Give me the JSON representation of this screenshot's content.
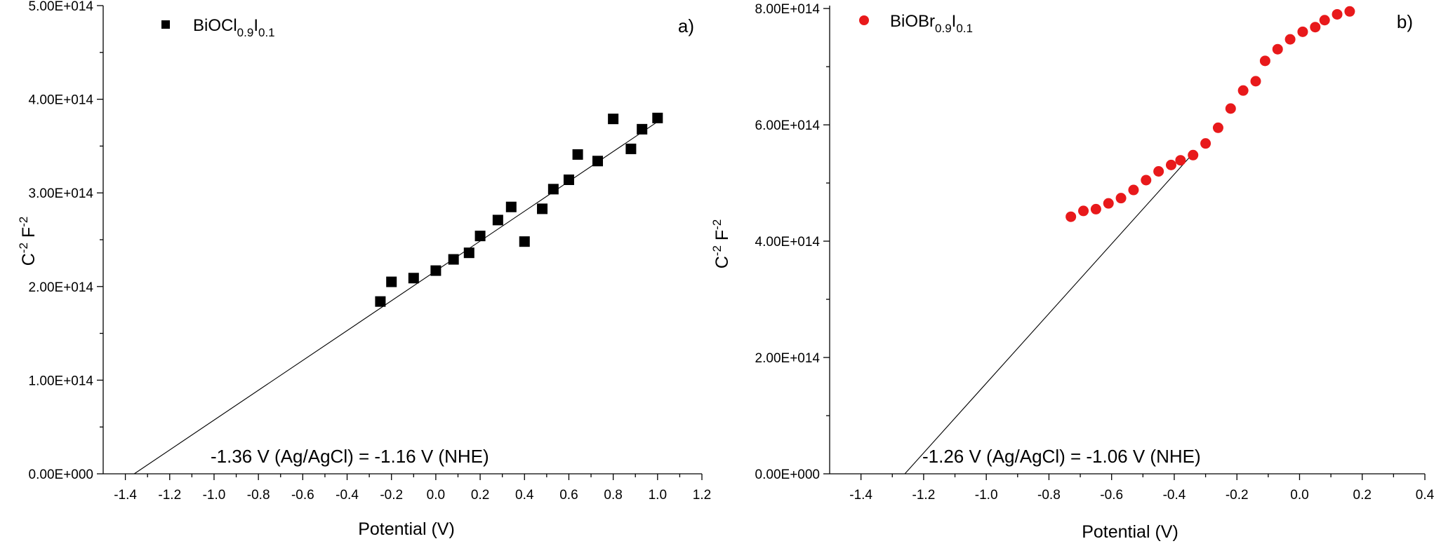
{
  "chart_data": [
    {
      "type": "scatter",
      "panel_label": "a)",
      "legend": {
        "base": "BiOCl",
        "sub1": "0.9",
        "mid": "I",
        "sub2": "0.1",
        "marker": "square",
        "placement": "top-left"
      },
      "xlabel": "Potential (V)",
      "ylabel": {
        "c": "C",
        "csup": "-2",
        "f": " F",
        "fsup": "-2"
      },
      "xlim": [
        -1.5,
        1.2
      ],
      "ylim": [
        0,
        500000000000000.0
      ],
      "xticks": [
        -1.4,
        -1.2,
        -1.0,
        -0.8,
        -0.6,
        -0.4,
        -0.2,
        0.0,
        0.2,
        0.4,
        0.6,
        0.8,
        1.0,
        1.2
      ],
      "xtick_labels": [
        "-1.4",
        "-1.2",
        "-1.0",
        "-0.8",
        "-0.6",
        "-0.4",
        "-0.2",
        "0.0",
        "0.2",
        "0.4",
        "0.6",
        "0.8",
        "1.0",
        "1.2"
      ],
      "yticks": [
        0,
        100000000000000.0,
        200000000000000.0,
        300000000000000.0,
        400000000000000.0,
        500000000000000.0
      ],
      "ytick_labels": [
        "0.00E+000",
        "1.00E+014",
        "2.00E+014",
        "3.00E+014",
        "4.00E+014",
        "5.00E+014"
      ],
      "series": [
        {
          "name": "BiOCl0.9I0.1",
          "color": "#000000",
          "x": [
            -0.25,
            -0.2,
            -0.1,
            0.0,
            0.08,
            0.15,
            0.2,
            0.28,
            0.34,
            0.4,
            0.48,
            0.53,
            0.6,
            0.64,
            0.73,
            0.8,
            0.88,
            0.93,
            1.0
          ],
          "y": [
            184000000000000.0,
            205000000000000.0,
            209000000000000.0,
            217000000000000.0,
            229000000000000.0,
            236000000000000.0,
            254000000000000.0,
            271000000000000.0,
            285000000000000.0,
            248000000000000.0,
            283000000000000.0,
            304000000000000.0,
            314000000000000.0,
            341000000000000.0,
            334000000000000.0,
            379000000000000.0,
            347000000000000.0,
            368000000000000.0,
            380000000000000.0
          ]
        }
      ],
      "fit_line": {
        "x": [
          -1.36,
          1.0
        ],
        "y": [
          0,
          376000000000000.0
        ]
      },
      "annotation": "-1.36 V (Ag/AgCl) = -1.16 V (NHE)",
      "grid": false
    },
    {
      "type": "scatter",
      "panel_label": "b)",
      "legend": {
        "base": "BiOBr",
        "sub1": "0.9",
        "mid": "I",
        "sub2": "0.1",
        "marker": "circle",
        "placement": "top-left"
      },
      "xlabel": "Potential (V)",
      "ylabel": {
        "c": "C",
        "csup": "-2",
        "f": " F",
        "fsup": "-2"
      },
      "xlim": [
        -1.5,
        0.4
      ],
      "ylim": [
        0,
        805000000000000.0
      ],
      "xticks": [
        -1.4,
        -1.2,
        -1.0,
        -0.8,
        -0.6,
        -0.4,
        -0.2,
        0.0,
        0.2,
        0.4
      ],
      "xtick_labels": [
        "-1.4",
        "-1.2",
        "-1.0",
        "-0.8",
        "-0.6",
        "-0.4",
        "-0.2",
        "0.0",
        "0.2",
        "0.4"
      ],
      "yticks": [
        0,
        200000000000000.0,
        400000000000000.0,
        600000000000000.0,
        800000000000000.0
      ],
      "ytick_labels": [
        "0.00E+000",
        "2.00E+014",
        "4.00E+014",
        "6.00E+014",
        "8.00E+014"
      ],
      "series": [
        {
          "name": "BiOBr0.9I0.1",
          "color": "#e8191b",
          "x": [
            -0.73,
            -0.69,
            -0.65,
            -0.61,
            -0.57,
            -0.53,
            -0.49,
            -0.45,
            -0.41,
            -0.38,
            -0.34,
            -0.3,
            -0.26,
            -0.22,
            -0.18,
            -0.14,
            -0.11,
            -0.07,
            -0.03,
            0.01,
            0.05,
            0.08,
            0.12,
            0.16
          ],
          "y": [
            442000000000000.0,
            452000000000000.0,
            455000000000000.0,
            465000000000000.0,
            474000000000000.0,
            488000000000000.0,
            505000000000000.0,
            520000000000000.0,
            531000000000000.0,
            539000000000000.0,
            548000000000000.0,
            568000000000000.0,
            595000000000000.0,
            628000000000000.0,
            659000000000000.0,
            675000000000000.0,
            710000000000000.0,
            730000000000000.0,
            747000000000000.0,
            760000000000000.0,
            768000000000000.0,
            780000000000000.0,
            790000000000000.0,
            795000000000000.0
          ]
        }
      ],
      "fit_line": {
        "x": [
          -1.26,
          -0.35
        ],
        "y": [
          0,
          545000000000000.0
        ]
      },
      "annotation": "-1.26 V (Ag/AgCl) = -1.06 V (NHE)",
      "grid": false
    }
  ]
}
